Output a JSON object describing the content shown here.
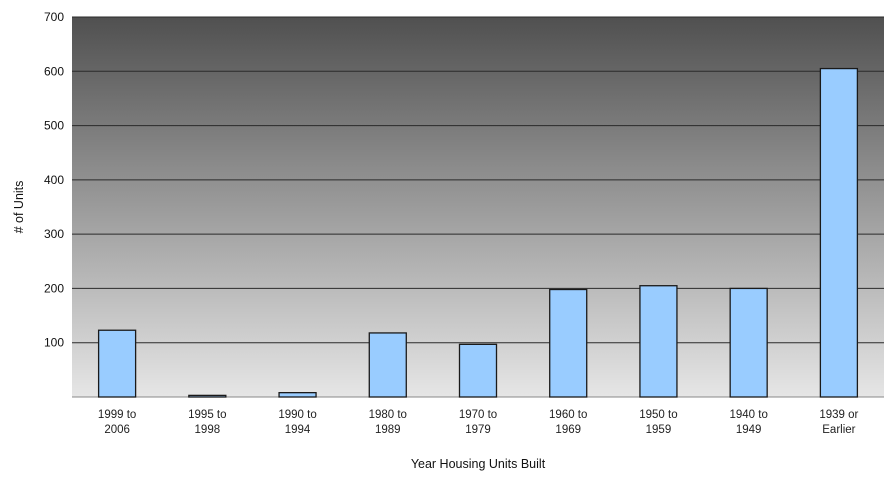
{
  "chart_data": {
    "type": "bar",
    "title": "",
    "xlabel": "Year Housing Units Built",
    "ylabel": "# of Units",
    "categories": [
      [
        "1999 to",
        "2006"
      ],
      [
        "1995 to",
        "1998"
      ],
      [
        "1990 to",
        "1994"
      ],
      [
        "1980 to",
        "1989"
      ],
      [
        "1970 to",
        "1979"
      ],
      [
        "1960 to",
        "1969"
      ],
      [
        "1950 to",
        "1959"
      ],
      [
        "1940 to",
        "1949"
      ],
      [
        "1939 or",
        "Earlier"
      ]
    ],
    "values": [
      123,
      3,
      8,
      118,
      97,
      198,
      205,
      200,
      605
    ],
    "ylim": [
      0,
      700
    ],
    "yticks": [
      100,
      200,
      300,
      400,
      500,
      600,
      700
    ],
    "grid": true,
    "legend": "none",
    "colors": {
      "bar_fill": "#99ccff",
      "bar_stroke": "#1a1a1a",
      "plot_bg_top": "#505050",
      "plot_bg_bottom": "#e6e6e6",
      "gridline": "#2a2a2a"
    }
  }
}
